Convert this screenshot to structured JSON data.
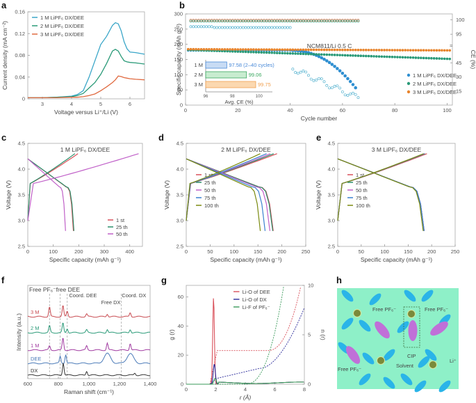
{
  "figure": {
    "colors": {
      "c1M": "#3aa6c8",
      "c2M": "#2a9a78",
      "c3M": "#e06a40",
      "c1M_b": "#2f8fd1",
      "c3M_b": "#e8842c",
      "cyc1": "#d9505a",
      "cyc25": "#2a8f6a",
      "cyc50": "#c060c8",
      "cyc75": "#3a80d0",
      "cyc100": "#7a8a10",
      "dee": "#d9505a",
      "dx": "#2a2a9a",
      "pf6": "#3a9a5a",
      "ramanDX": "#333333",
      "ramanDEE": "#4a7ab8",
      "raman1M": "#a03aa0",
      "raman2M": "#2a9a78",
      "raman3M": "#c84a50",
      "schemeBg": "#8ef0c8",
      "solvent": "#2ab4e8",
      "anion": "#c070d8",
      "li": "#7a8a3a"
    }
  },
  "chart_data": [
    {
      "panel": "a",
      "type": "line",
      "xlabel": "Voltage versus Li⁺/Li (V)",
      "ylabel": "Current density (mA cm⁻²)",
      "xlim": [
        2.5,
        6.5
      ],
      "ylim": [
        0,
        0.16
      ],
      "xticks": [
        "3",
        "4",
        "5",
        "6"
      ],
      "yticks": [
        "0",
        "0.04",
        "0.08",
        "0.12",
        "0.16"
      ],
      "x": [
        2.5,
        3.0,
        3.5,
        4.0,
        4.2,
        4.4,
        4.6,
        4.8,
        5.0,
        5.2,
        5.4,
        5.5,
        5.6,
        5.7,
        5.8,
        5.9,
        6.0,
        6.2,
        6.5
      ],
      "series": [
        {
          "name": "1 M LiPF₆ DX/DEE",
          "values": [
            0.002,
            0.002,
            0.003,
            0.005,
            0.008,
            0.015,
            0.04,
            0.07,
            0.1,
            0.115,
            0.135,
            0.14,
            0.138,
            0.125,
            0.105,
            0.092,
            0.086,
            0.085,
            0.082
          ]
        },
        {
          "name": "2 M LiPF₆ DX/DEE",
          "values": [
            0.002,
            0.002,
            0.003,
            0.004,
            0.006,
            0.01,
            0.02,
            0.03,
            0.045,
            0.065,
            0.088,
            0.091,
            0.088,
            0.078,
            0.07,
            0.068,
            0.067,
            0.066,
            0.064
          ]
        },
        {
          "name": "3 M LiPF₆ DX/DEE",
          "values": [
            0.002,
            0.002,
            0.002,
            0.003,
            0.003,
            0.004,
            0.006,
            0.009,
            0.015,
            0.022,
            0.03,
            0.035,
            0.042,
            0.041,
            0.039,
            0.038,
            0.037,
            0.036,
            0.035
          ]
        }
      ]
    },
    {
      "panel": "b",
      "type": "scatter",
      "xlabel": "Cycle number",
      "ylabel": "Specific capacity (mAh g⁻¹)",
      "y2label": "CE (%)",
      "annotation": "NCM811/Li   0.5 C",
      "xlim": [
        0,
        102
      ],
      "ylim": [
        0,
        300
      ],
      "xticks": [
        "0",
        "20",
        "40",
        "60",
        "80",
        "100"
      ],
      "yticks": [
        "0",
        "50",
        "100",
        "150",
        "200",
        "250",
        "300"
      ],
      "y2ticks": [
        "15",
        "30",
        "45",
        "95",
        "100"
      ],
      "series": [
        {
          "name": "1 M LiPF₆ DX/DEE",
          "capacity_fade": {
            "flat_until": 40,
            "start": 180,
            "end_cycle": 65,
            "end": 57
          }
        },
        {
          "name": "2 M LiPF₆ DX/DEE",
          "capacity_fade": {
            "start": 182,
            "end_cycle": 101,
            "end": 152
          }
        },
        {
          "name": "3 M LiPF₆ DX/DEE",
          "capacity_fade": {
            "start": 184,
            "end_cycle": 101,
            "end": 180
          }
        }
      ],
      "inset": {
        "xlabel": "Avg. CE (%)",
        "xlim": [
          96,
          101
        ],
        "xticks": [
          "96",
          "98",
          "100"
        ],
        "categories": [
          "1 M",
          "2 M",
          "3 M"
        ],
        "values": [
          97.58,
          99.06,
          99.75
        ],
        "labels": [
          "97.58 (2–40 cycles)",
          "99.06",
          "99.75"
        ]
      }
    },
    {
      "panel": "c",
      "type": "line",
      "title": "1 M LiPF₆ DX/DEE",
      "xlabel": "Specific capacity (mAh g⁻¹)",
      "ylabel": "Voltage (V)",
      "xlim": [
        0,
        450
      ],
      "ylim": [
        2.5,
        4.5
      ],
      "xticks": [
        "0",
        "100",
        "200",
        "300",
        "400"
      ],
      "yticks": [
        "2.5",
        "3.0",
        "3.5",
        "4.0",
        "4.5"
      ],
      "legend": [
        "1 st",
        "25 th",
        "50 th"
      ],
      "charge_capacity": [
        197,
        185,
        435
      ],
      "discharge_capacity": [
        179,
        181,
        148
      ]
    },
    {
      "panel": "d",
      "type": "line",
      "title": "2 M LiPF₆ DX/DEE",
      "xlabel": "Specific capacity (mAh g⁻¹)",
      "ylabel": "Voltage (V)",
      "xlim": [
        0,
        250
      ],
      "ylim": [
        2.5,
        4.5
      ],
      "xticks": [
        "0",
        "50",
        "100",
        "150",
        "200",
        "250"
      ],
      "yticks": [
        "2.5",
        "3.0",
        "3.5",
        "4.0",
        "4.5"
      ],
      "legend": [
        "1 st",
        "25 th",
        "50 th",
        "75 th",
        "100 th"
      ],
      "charge_capacity": [
        190,
        183,
        176,
        168,
        155
      ],
      "discharge_capacity": [
        182,
        181,
        175,
        165,
        155
      ]
    },
    {
      "panel": "e",
      "type": "line",
      "title": "3 M LiPF₆ DX/DEE",
      "xlabel": "Specific capacity (mAh g⁻¹)",
      "ylabel": "Voltage (V)",
      "xlim": [
        0,
        250
      ],
      "ylim": [
        2.5,
        4.5
      ],
      "xticks": [
        "0",
        "50",
        "100",
        "150",
        "200",
        "250"
      ],
      "yticks": [
        "2.5",
        "3.0",
        "3.5",
        "4.0",
        "4.5"
      ],
      "legend": [
        "1 st",
        "25 th",
        "50 th",
        "75 th",
        "100 th"
      ],
      "charge_capacity": [
        190,
        186,
        185,
        184,
        183
      ],
      "discharge_capacity": [
        184,
        184,
        184,
        184,
        182
      ]
    },
    {
      "panel": "f",
      "type": "line",
      "xlabel": "Raman shift (cm⁻¹)",
      "ylabel": "Intensity (a.u.)",
      "xlim": [
        600,
        1400
      ],
      "xticks": [
        "600",
        "800",
        "1,000",
        "1,200",
        "1,400"
      ],
      "series_labels": [
        "3 M",
        "2 M",
        "1 M",
        "DEE",
        "DX"
      ],
      "annotations": [
        "Free PF₆⁻",
        "free DEE",
        "Coord. DEE",
        "Free DX",
        "Coord. DX"
      ],
      "marker_lines": [
        742,
        812,
        858,
        1212
      ]
    },
    {
      "panel": "g",
      "type": "line",
      "xlabel": "r (Å)",
      "ylabel": "g (r)",
      "y2label": "n (r)",
      "xlim": [
        0,
        8
      ],
      "ylim": [
        0,
        68
      ],
      "y2lim": [
        0,
        10
      ],
      "xticks": [
        "0",
        "2",
        "4",
        "6",
        "8"
      ],
      "yticks": [
        "0",
        "20",
        "40",
        "60"
      ],
      "y2ticks": [
        "0",
        "5",
        "10"
      ],
      "legend": [
        "Li-O of DEE",
        "Li-O of DX",
        "Li-F of PF₆⁻"
      ],
      "peaks": {
        "Li-O of DEE": {
          "r": 1.85,
          "g": 60
        },
        "Li-O of DX": {
          "r": 1.9,
          "g": 14
        },
        "Li-F of PF₆⁻": {
          "r": 1.95,
          "g": 4
        }
      },
      "n_r_plateaus": {
        "Li-O of DEE": 3.4,
        "Li-O of DX": 0.6
      }
    }
  ],
  "scheme_h": {
    "labels": {
      "free_pf6_1": "Free PF₆⁻",
      "free_pf6_2": "Free PF₆⁻",
      "free_pf6_3": "Free PF₆⁻",
      "cip": "CIP",
      "solvent": "Solvent",
      "li": "Li⁺"
    }
  },
  "panel_letters": [
    "a",
    "b",
    "c",
    "d",
    "e",
    "f",
    "g",
    "h"
  ]
}
